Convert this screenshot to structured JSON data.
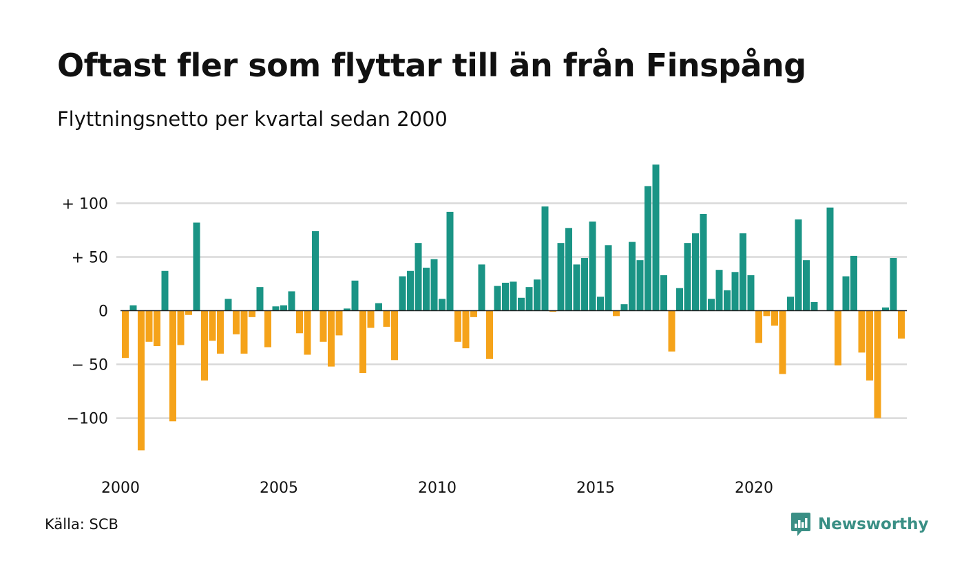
{
  "title": "Oftast fler som flyttar till än från Finspång",
  "subtitle": "Flyttningsnetto per kvartal sedan 2000",
  "source": "Källa: SCB",
  "brand": "Newsworthy",
  "colors": {
    "positive": "#1a9485",
    "negative": "#f5a31a",
    "grid": "#d9d9d9",
    "zero_line": "#222222"
  },
  "chart_data": {
    "type": "bar",
    "title": "Oftast fler som flyttar till än från Finspång",
    "subtitle": "Flyttningsnetto per kvartal sedan 2000",
    "xlabel": "",
    "ylabel": "",
    "ylim": [
      -135,
      140
    ],
    "yticks": [
      100,
      50,
      0,
      -50,
      -100
    ],
    "ytick_labels": [
      "+ 100",
      "+  50",
      "0",
      "− 50",
      "−100"
    ],
    "xtick_labels": [
      "2000",
      "2005",
      "2010",
      "2015",
      "2020"
    ],
    "xtick_years": [
      2000,
      2005,
      2010,
      2015,
      2020
    ],
    "start_year": 2000,
    "grid": true,
    "legend": "none",
    "values": [
      -44,
      5,
      -130,
      -29,
      -33,
      37,
      -103,
      -32,
      -4,
      82,
      -65,
      -28,
      -40,
      11,
      -22,
      -40,
      -6,
      22,
      -34,
      4,
      5,
      18,
      -21,
      -41,
      74,
      -29,
      -52,
      -23,
      2,
      28,
      -58,
      -16,
      7,
      -15,
      -46,
      32,
      37,
      63,
      40,
      48,
      11,
      92,
      -29,
      -35,
      -6,
      43,
      -45,
      23,
      26,
      27,
      12,
      22,
      29,
      97,
      -1,
      63,
      77,
      43,
      49,
      83,
      13,
      61,
      -5,
      6,
      64,
      47,
      116,
      136,
      33,
      -38,
      21,
      63,
      72,
      90,
      11,
      38,
      19,
      36,
      72,
      33,
      -30,
      -5,
      -14,
      -59,
      13,
      85,
      47,
      8,
      0,
      96,
      -51,
      32,
      51,
      -39,
      -65,
      -100,
      3,
      49,
      -26
    ]
  }
}
